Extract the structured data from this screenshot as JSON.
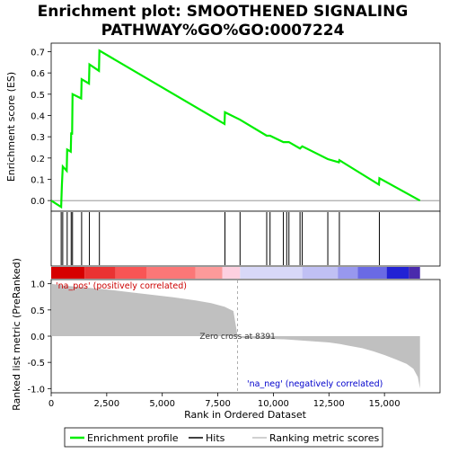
{
  "chart_data": {
    "type": "line",
    "title_line1": "Enrichment plot: SMOOTHENED SIGNALING",
    "title_line2": "PATHWAY%GO%GO:0007224",
    "top_panel": {
      "ylabel": "Enrichment score (ES)",
      "ylim": [
        -0.05,
        0.74
      ],
      "yticks": [
        0.0,
        0.1,
        0.2,
        0.3,
        0.4,
        0.5,
        0.6,
        0.7
      ],
      "ytick_labels": [
        "0.0",
        "0.1",
        "0.2",
        "0.3",
        "0.4",
        "0.5",
        "0.6",
        "0.7"
      ],
      "series_name": "Enrichment profile",
      "color": "#00ee00",
      "points": [
        [
          0,
          0.0
        ],
        [
          450,
          -0.03
        ],
        [
          480,
          0.07
        ],
        [
          520,
          0.16
        ],
        [
          700,
          0.14
        ],
        [
          720,
          0.24
        ],
        [
          880,
          0.23
        ],
        [
          900,
          0.32
        ],
        [
          940,
          0.31
        ],
        [
          960,
          0.5
        ],
        [
          1350,
          0.48
        ],
        [
          1370,
          0.57
        ],
        [
          1700,
          0.55
        ],
        [
          1720,
          0.64
        ],
        [
          2150,
          0.61
        ],
        [
          2170,
          0.705
        ],
        [
          7800,
          0.36
        ],
        [
          7820,
          0.415
        ],
        [
          8500,
          0.38
        ],
        [
          9700,
          0.305
        ],
        [
          9850,
          0.305
        ],
        [
          10450,
          0.275
        ],
        [
          10700,
          0.275
        ],
        [
          11200,
          0.245
        ],
        [
          11300,
          0.255
        ],
        [
          12450,
          0.195
        ],
        [
          12950,
          0.18
        ],
        [
          12970,
          0.19
        ],
        [
          14750,
          0.075
        ],
        [
          14770,
          0.105
        ],
        [
          16600,
          0.0
        ]
      ]
    },
    "hits_panel": {
      "hit_positions": [
        450,
        520,
        720,
        900,
        960,
        1370,
        1720,
        2170,
        7820,
        8500,
        9700,
        9850,
        10450,
        10600,
        10700,
        11200,
        11300,
        12450,
        12970,
        14770
      ]
    },
    "color_bar": {
      "segments": [
        {
          "from": 0,
          "to": 1500,
          "color": "#d60000"
        },
        {
          "from": 1500,
          "to": 2900,
          "color": "#ea3333"
        },
        {
          "from": 2900,
          "to": 4300,
          "color": "#f85555"
        },
        {
          "from": 4300,
          "to": 6500,
          "color": "#fb7777"
        },
        {
          "from": 6500,
          "to": 7700,
          "color": "#fc9a9a"
        },
        {
          "from": 7700,
          "to": 8500,
          "color": "#fdd0e0"
        },
        {
          "from": 8500,
          "to": 11300,
          "color": "#d8d8f8"
        },
        {
          "from": 11300,
          "to": 12900,
          "color": "#c0c0f4"
        },
        {
          "from": 12900,
          "to": 13800,
          "color": "#9898ee"
        },
        {
          "from": 13800,
          "to": 15100,
          "color": "#6a6ae4"
        },
        {
          "from": 15100,
          "to": 16100,
          "color": "#2222d4"
        },
        {
          "from": 16100,
          "to": 16600,
          "color": "#4a2aac"
        }
      ]
    },
    "bottom_panel": {
      "ylabel": "Ranked list metric (PreRanked)",
      "xlabel": "Rank in Ordered Dataset",
      "ylim": [
        -1.08,
        1.08
      ],
      "yticks": [
        1.0,
        0.5,
        0.0,
        -0.5,
        -1.0
      ],
      "ytick_labels": [
        "1.0",
        "0.5",
        "0.0",
        "-0.5",
        "-1.0"
      ],
      "xlim": [
        0,
        17500
      ],
      "xticks": [
        0,
        2500,
        5000,
        7500,
        10000,
        12500,
        15000
      ],
      "xtick_labels": [
        "0",
        "2,500",
        "5,000",
        "7,500",
        "10,000",
        "12,500",
        "15,000"
      ],
      "zero_cross_rank": 8391,
      "zero_cross_label": "Zero cross at 8391",
      "pos_label": "'na_pos' (positively correlated)",
      "neg_label": "'na_neg' (negatively correlated)",
      "metric_points": [
        [
          0,
          1.0
        ],
        [
          300,
          0.98
        ],
        [
          700,
          0.96
        ],
        [
          1500,
          0.93
        ],
        [
          2500,
          0.89
        ],
        [
          3500,
          0.84
        ],
        [
          4500,
          0.79
        ],
        [
          5500,
          0.74
        ],
        [
          6500,
          0.68
        ],
        [
          7200,
          0.63
        ],
        [
          7800,
          0.56
        ],
        [
          8200,
          0.48
        ],
        [
          8391,
          0.0
        ],
        [
          8600,
          -0.04
        ],
        [
          9500,
          -0.05
        ],
        [
          10500,
          -0.06
        ],
        [
          11500,
          -0.09
        ],
        [
          12500,
          -0.12
        ],
        [
          13000,
          -0.15
        ],
        [
          13500,
          -0.19
        ],
        [
          14000,
          -0.23
        ],
        [
          14500,
          -0.29
        ],
        [
          15000,
          -0.36
        ],
        [
          15500,
          -0.44
        ],
        [
          16000,
          -0.53
        ],
        [
          16300,
          -0.62
        ],
        [
          16500,
          -0.78
        ],
        [
          16600,
          -1.0
        ]
      ],
      "fill_color": "#c0c0c0"
    },
    "legend": {
      "items": [
        {
          "label": "Enrichment profile",
          "color": "#00ee00",
          "style": "line"
        },
        {
          "label": "Hits",
          "color": "#000000",
          "style": "line"
        },
        {
          "label": "Ranking metric scores",
          "color": "#c0c0c0",
          "style": "line"
        }
      ]
    }
  }
}
